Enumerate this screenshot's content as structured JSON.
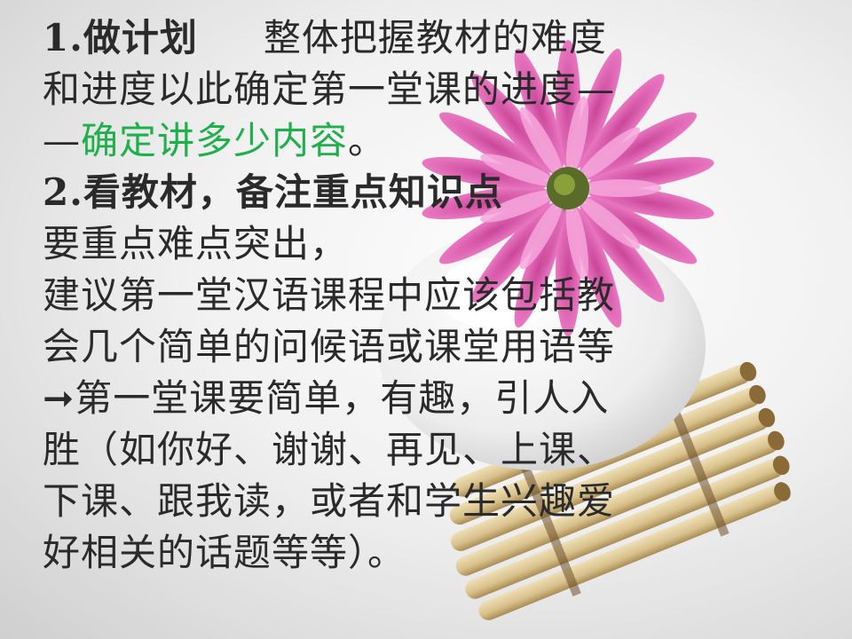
{
  "slide": {
    "line1_label": "1.做计划",
    "line1_rest": "整体把握教材的难度",
    "line2": "和进度以此确定第一堂课的进度—",
    "line3_prefix": "—",
    "line3_highlight": "确定讲多少内容",
    "line3_end": "。",
    "line4": "2.看教材，备注重点知识点",
    "line5": "要重点难点突出，",
    "line6": "建议第一堂汉语课程中应该包括教",
    "line7": "会几个简单的问候语或课堂用语等",
    "line8_arrow": "➞",
    "line8_text": "第一堂课要简单，有趣，引人入",
    "line9": "胜（如你好、谢谢、再见、上课、",
    "line10": "下课、跟我读，或者和学生兴趣爱",
    "line11": "好相关的话题等等）。"
  },
  "colors": {
    "text": "#2a2a2a",
    "highlight": "#1fb04c",
    "flower": "#e25fb5"
  },
  "icons": {
    "background_image": "flower-vase-illustration"
  }
}
